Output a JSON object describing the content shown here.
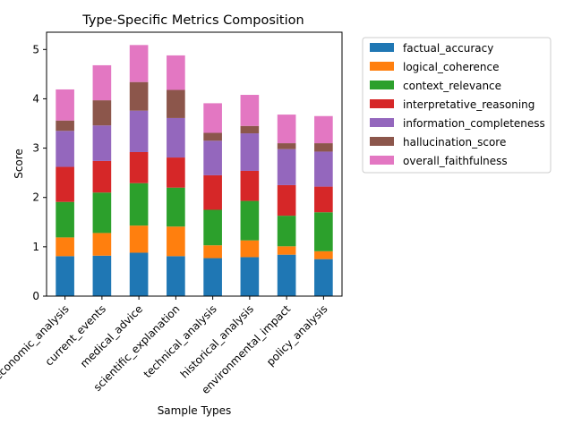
{
  "chart_data": {
    "type": "bar",
    "stacked": true,
    "title": "Type-Specific Metrics Composition",
    "xlabel": "Sample Types",
    "ylabel": "Score",
    "ylim": [
      0,
      5.35
    ],
    "yticks": [
      0,
      1,
      2,
      3,
      4,
      5
    ],
    "grid": false,
    "legend_position": "outside-right",
    "categories": [
      "economic_analysis",
      "current_events",
      "medical_advice",
      "scientific_explanation",
      "technical_analysis",
      "historical_analysis",
      "environmental_impact",
      "policy_analysis"
    ],
    "series": [
      {
        "name": "factual_accuracy",
        "color": "#1f77b4",
        "values": [
          0.81,
          0.82,
          0.88,
          0.81,
          0.77,
          0.79,
          0.84,
          0.75
        ]
      },
      {
        "name": "logical_coherence",
        "color": "#ff7f0e",
        "values": [
          0.38,
          0.46,
          0.55,
          0.6,
          0.26,
          0.34,
          0.17,
          0.16
        ]
      },
      {
        "name": "context_relevance",
        "color": "#2ca02c",
        "values": [
          0.72,
          0.82,
          0.86,
          0.79,
          0.72,
          0.8,
          0.62,
          0.79
        ]
      },
      {
        "name": "interpretative_reasoning",
        "color": "#d62728",
        "values": [
          0.71,
          0.64,
          0.63,
          0.61,
          0.7,
          0.61,
          0.62,
          0.52
        ]
      },
      {
        "name": "information_completeness",
        "color": "#9467bd",
        "values": [
          0.73,
          0.72,
          0.84,
          0.8,
          0.7,
          0.76,
          0.73,
          0.71
        ]
      },
      {
        "name": "hallucination_score",
        "color": "#8c564b",
        "values": [
          0.21,
          0.51,
          0.58,
          0.57,
          0.16,
          0.15,
          0.12,
          0.17
        ]
      },
      {
        "name": "overall_faithfulness",
        "color": "#e377c2",
        "values": [
          0.63,
          0.71,
          0.75,
          0.7,
          0.6,
          0.63,
          0.58,
          0.55
        ]
      }
    ]
  }
}
